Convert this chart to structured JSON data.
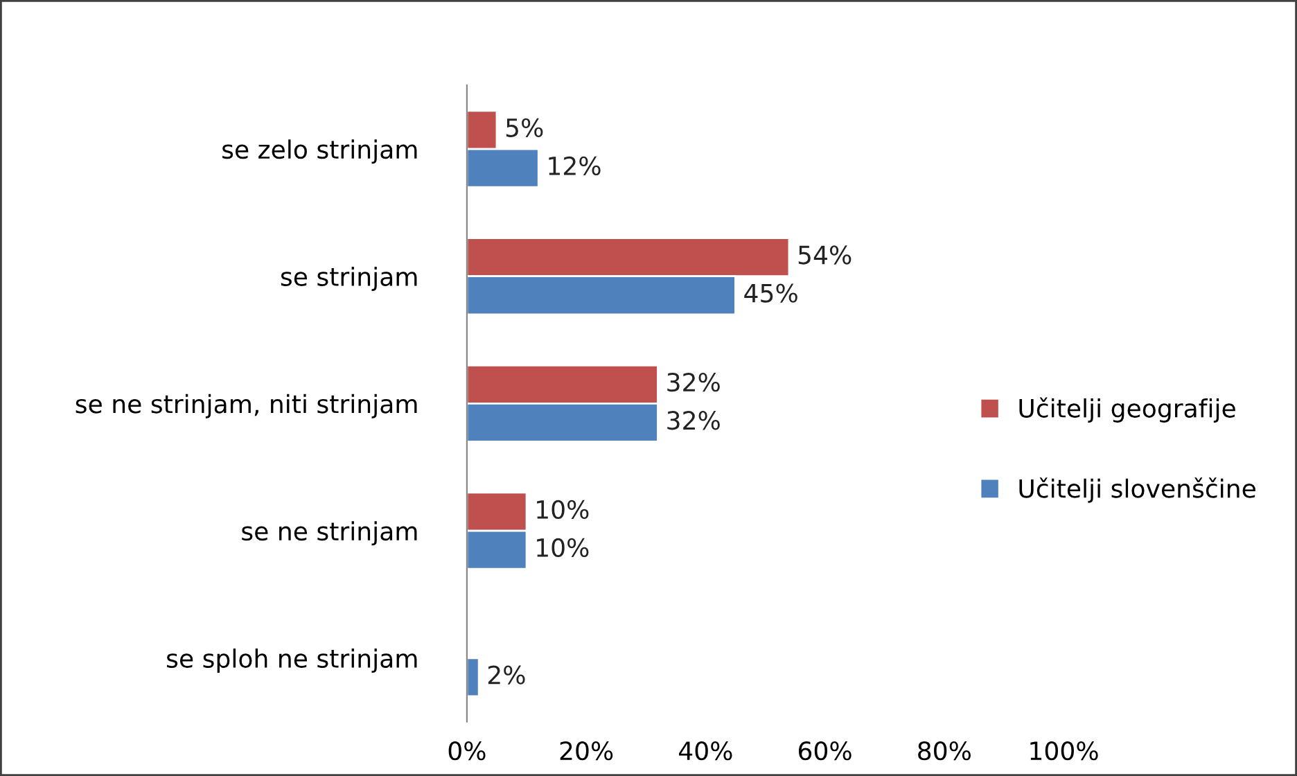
{
  "chart_data": {
    "type": "bar",
    "orientation": "horizontal",
    "categories": [
      "se zelo strinjam",
      "se strinjam",
      "se ne strinjam, niti strinjam",
      "se ne strinjam",
      "se sploh ne strinjam"
    ],
    "series": [
      {
        "name": "Učitelji geografije",
        "color": "#c0504d",
        "values": [
          5,
          54,
          32,
          10,
          null
        ],
        "value_labels": [
          "5%",
          "54%",
          "32%",
          "10%",
          null
        ]
      },
      {
        "name": "Učitelji slovenščine",
        "color": "#4f81bd",
        "values": [
          12,
          45,
          32,
          10,
          2
        ],
        "value_labels": [
          "12%",
          "45%",
          "32%",
          "10%",
          "2%"
        ]
      }
    ],
    "xlim": [
      0,
      100
    ],
    "xticks": [
      {
        "value": 0,
        "label": "0%"
      },
      {
        "value": 20,
        "label": "20%"
      },
      {
        "value": 40,
        "label": "40%"
      },
      {
        "value": 60,
        "label": "60%"
      },
      {
        "value": 80,
        "label": "80%"
      },
      {
        "value": 100,
        "label": "100%"
      }
    ],
    "grid": false,
    "legend": "right"
  }
}
